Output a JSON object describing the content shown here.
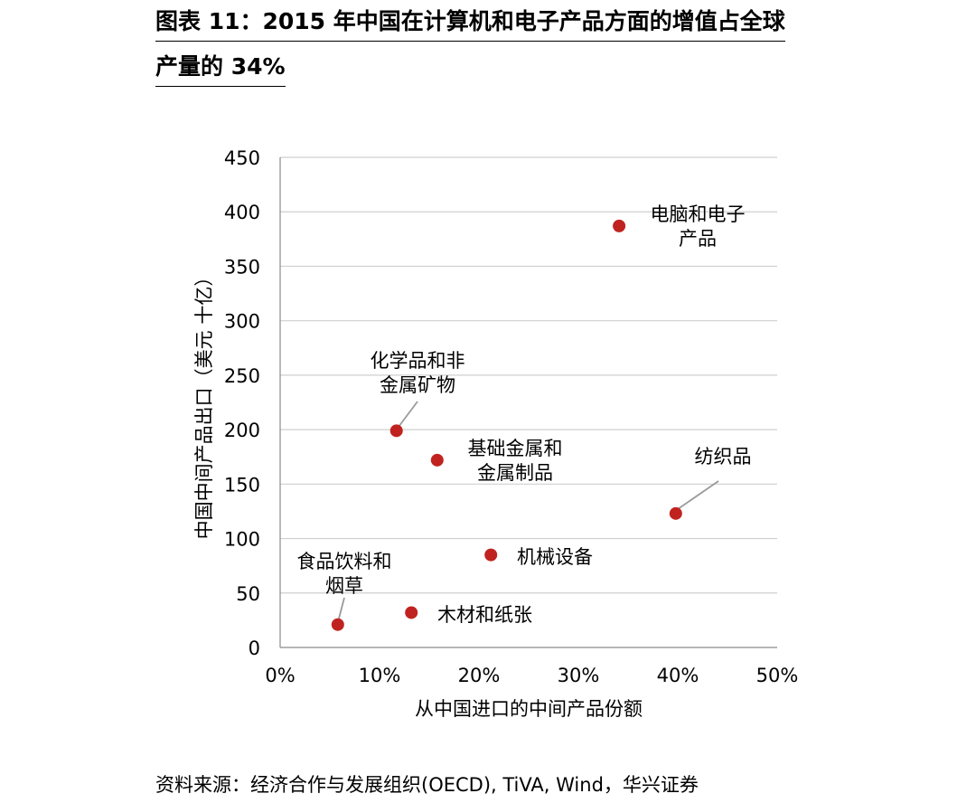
{
  "title": {
    "line1": "图表 11：2015 年中国在计算机和电子产品方面的增值占全球",
    "line2": "产量的 34%"
  },
  "source": "资料来源：经济合作与发展组织(OECD), TiVA, Wind，华兴证券",
  "colors": {
    "point": "#c0231f",
    "grid": "#cfcfcf",
    "axis": "#8a8a8a",
    "leader": "#9a9a9a"
  },
  "chart_data": {
    "type": "scatter",
    "xlabel": "从中国进口的中间产品份额",
    "ylabel": "中国中间产品出口（美元 十亿）",
    "xlim": [
      0,
      0.5
    ],
    "ylim": [
      0,
      450
    ],
    "x_ticks": [
      0,
      0.1,
      0.2,
      0.3,
      0.4,
      0.5
    ],
    "x_tick_labels": [
      "0%",
      "10%",
      "20%",
      "30%",
      "40%",
      "50%"
    ],
    "y_ticks": [
      0,
      50,
      100,
      150,
      200,
      250,
      300,
      350,
      400,
      450
    ],
    "y_tick_labels": [
      "0",
      "50",
      "100",
      "150",
      "200",
      "250",
      "300",
      "350",
      "400",
      "450"
    ],
    "grid": true,
    "points": [
      {
        "label": "电脑和电子\n产品",
        "x": 0.341,
        "y": 387
      },
      {
        "label": "化学品和非\n金属矿物",
        "x": 0.117,
        "y": 199
      },
      {
        "label": "基础金属和\n金属制品",
        "x": 0.158,
        "y": 172
      },
      {
        "label": "纺织品",
        "x": 0.398,
        "y": 123
      },
      {
        "label": "机械设备",
        "x": 0.212,
        "y": 85
      },
      {
        "label": "食品饮料和\n烟草",
        "x": 0.058,
        "y": 21
      },
      {
        "label": "木材和纸张",
        "x": 0.132,
        "y": 32
      }
    ]
  }
}
